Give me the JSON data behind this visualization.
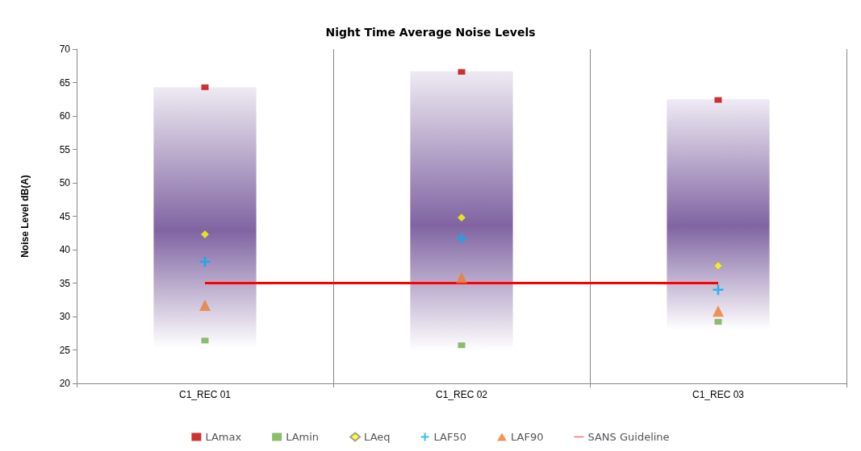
{
  "chart_data": {
    "type": "scatter",
    "title": "Night Time Average Noise Levels",
    "ylabel": "Noise Level dB(A)",
    "categories": [
      "C1_REC 01",
      "C1_REC 02",
      "C1_REC 03"
    ],
    "ylim": [
      20,
      70
    ],
    "yticks": [
      20,
      25,
      30,
      35,
      40,
      45,
      50,
      55,
      60,
      65,
      70
    ],
    "grid": "x",
    "legend": "bottom",
    "series": [
      {
        "type": "bar",
        "color": "#8064a2",
        "base": [
          25.3,
          24.8,
          28
        ],
        "values": [
          39,
          41.9,
          34.5
        ]
      },
      {
        "name": "LAmax",
        "marker": "square",
        "color": "#c00000",
        "values": [
          64.3,
          66.6,
          62.4
        ]
      },
      {
        "name": "LAmin",
        "marker": "square",
        "color": "#70ad47",
        "values": [
          26.4,
          25.7,
          29.2
        ]
      },
      {
        "name": "LAeq",
        "marker": "diamond",
        "color": "#ffff00",
        "values": [
          42.3,
          44.8,
          37.6
        ]
      },
      {
        "name": "LAF50",
        "marker": "cross",
        "color": "#00b0f0",
        "values": [
          38.2,
          41.7,
          34
        ]
      },
      {
        "name": "LAF90",
        "marker": "triangle",
        "color": "#ed7d31",
        "values": [
          31.7,
          35.8,
          30.8
        ]
      },
      {
        "name": "SANS Guideline",
        "type": "line",
        "marker": "none",
        "line_style": "solid",
        "color": "#ff0000",
        "values": [
          35,
          35,
          35
        ]
      }
    ]
  }
}
